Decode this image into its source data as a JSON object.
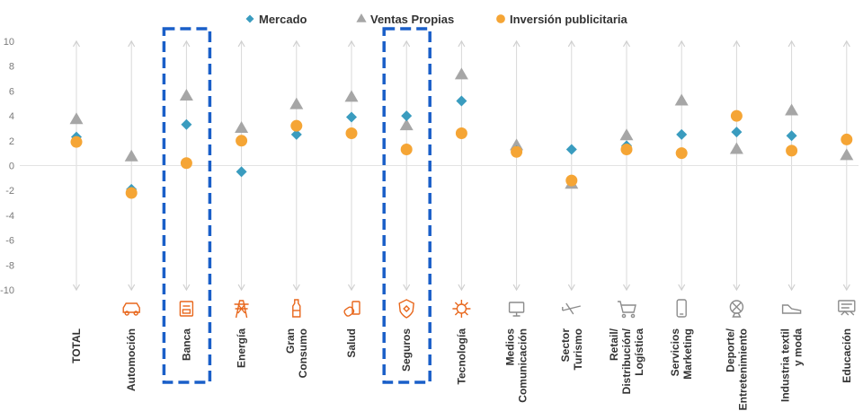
{
  "chart_data": {
    "type": "scatter",
    "categories": [
      [
        "TOTAL"
      ],
      [
        "Automoción"
      ],
      [
        "Banca"
      ],
      [
        "Energía"
      ],
      [
        "Gran",
        "Consumo"
      ],
      [
        "Salud"
      ],
      [
        "Seguros"
      ],
      [
        "Tecnología"
      ],
      [
        "Medios",
        "Comunicación"
      ],
      [
        "Sector",
        "Turismo"
      ],
      [
        "Retail/",
        "Distribución/",
        "Logística"
      ],
      [
        "Servicios",
        "Marketing"
      ],
      [
        "Deporte/",
        "Entretenimiento"
      ],
      [
        "Industria textil",
        "y moda"
      ],
      [
        "Educación"
      ]
    ],
    "ylim": [
      -10,
      10
    ],
    "yticks": [
      10,
      8,
      6,
      4,
      2,
      0,
      -2,
      -4,
      -6,
      -8,
      -10
    ],
    "highlighted": [
      "Banca",
      "Seguros"
    ],
    "series": [
      {
        "name": "Mercado",
        "marker": "diamond",
        "color": "#3a9cbf",
        "values": [
          2.3,
          -1.9,
          3.3,
          -0.5,
          2.5,
          3.9,
          4.0,
          5.2,
          1.2,
          1.3,
          1.6,
          2.5,
          2.7,
          2.4,
          2.1
        ]
      },
      {
        "name": "Ventas Propias",
        "marker": "triangle",
        "color": "#a6a6a6",
        "values": [
          3.7,
          0.7,
          5.6,
          3.0,
          4.9,
          5.5,
          3.2,
          7.3,
          1.6,
          -1.5,
          2.4,
          5.2,
          1.3,
          4.4,
          0.8
        ]
      },
      {
        "name": "Inversión publicitaria",
        "marker": "circle",
        "color": "#f5a535",
        "values": [
          1.9,
          -2.2,
          0.2,
          2.0,
          3.2,
          2.6,
          1.3,
          2.6,
          1.1,
          -1.2,
          1.3,
          1.0,
          4.0,
          1.2,
          2.1
        ]
      }
    ],
    "icons": [
      "none",
      "car-icon",
      "bank-card-icon",
      "power-tower-icon",
      "bottle-icon",
      "medicine-icon",
      "shield-icon",
      "chip-icon",
      "media-icon",
      "airplane-icon",
      "cart-icon",
      "phone-icon",
      "sport-icon",
      "shoe-icon",
      "education-icon"
    ],
    "icon_colors": {
      "active": "#e8671c",
      "muted": "#8c8c8c"
    }
  }
}
